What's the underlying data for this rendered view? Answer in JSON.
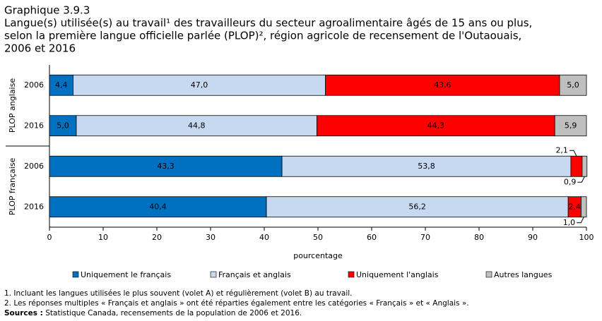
{
  "chart_data": {
    "type": "stacked-barh",
    "title": "Graphique 3.9.3",
    "subtitle_lines": [
      "Langue(s) utilisée(s) au travail¹ des travailleurs du secteur agroalimentaire âgés de 15 ans ou plus,",
      "selon la première langue officielle parlée (PLOP)², région agricole de recensement de l'Outaouais,",
      "2006 et 2016"
    ],
    "groups": [
      {
        "name": "PLOP anglaise",
        "categories": [
          "2006",
          "2016"
        ]
      },
      {
        "name": "PLOP française",
        "categories": [
          "2006",
          "2016"
        ]
      }
    ],
    "series": [
      {
        "name": "Uniquement le français",
        "color": "#0070c0",
        "values": [
          4.4,
          5.0,
          43.3,
          40.4
        ],
        "value_labels": [
          "4,4",
          "5,0",
          "43,3",
          "40,4"
        ]
      },
      {
        "name": "Français et anglais",
        "color": "#c6d9f1",
        "values": [
          47.0,
          44.8,
          53.8,
          56.2
        ],
        "value_labels": [
          "47,0",
          "44,8",
          "53,8",
          "56,2"
        ]
      },
      {
        "name": "Uniquement l'anglais",
        "color": "#ff0000",
        "values": [
          43.6,
          44.3,
          2.1,
          2.4
        ],
        "value_labels": [
          "43,6",
          "44,3",
          "2,1",
          "2,4"
        ]
      },
      {
        "name": "Autres langues",
        "color": "#bfbfbf",
        "values": [
          5.0,
          5.9,
          0.9,
          1.0
        ],
        "value_labels": [
          "5,0",
          "5,9",
          "0,9",
          "1,0"
        ]
      }
    ],
    "xlim": [
      0,
      100
    ],
    "xticks": [
      0,
      10,
      20,
      30,
      40,
      50,
      60,
      70,
      80,
      90,
      100
    ],
    "xlabel": "pourcentage",
    "notes": [
      "1. Incluant les langues utilisées le plus souvent (volet A) et régulièrement (volet B) au travail.",
      "2. Les réponses multiples « Français et anglais » ont été réparties également entre les catégories « Français » et « Anglais »."
    ],
    "source_label": "Sources :",
    "source": "Statistique Canada, recensements de la population de 2006 et 2016."
  }
}
